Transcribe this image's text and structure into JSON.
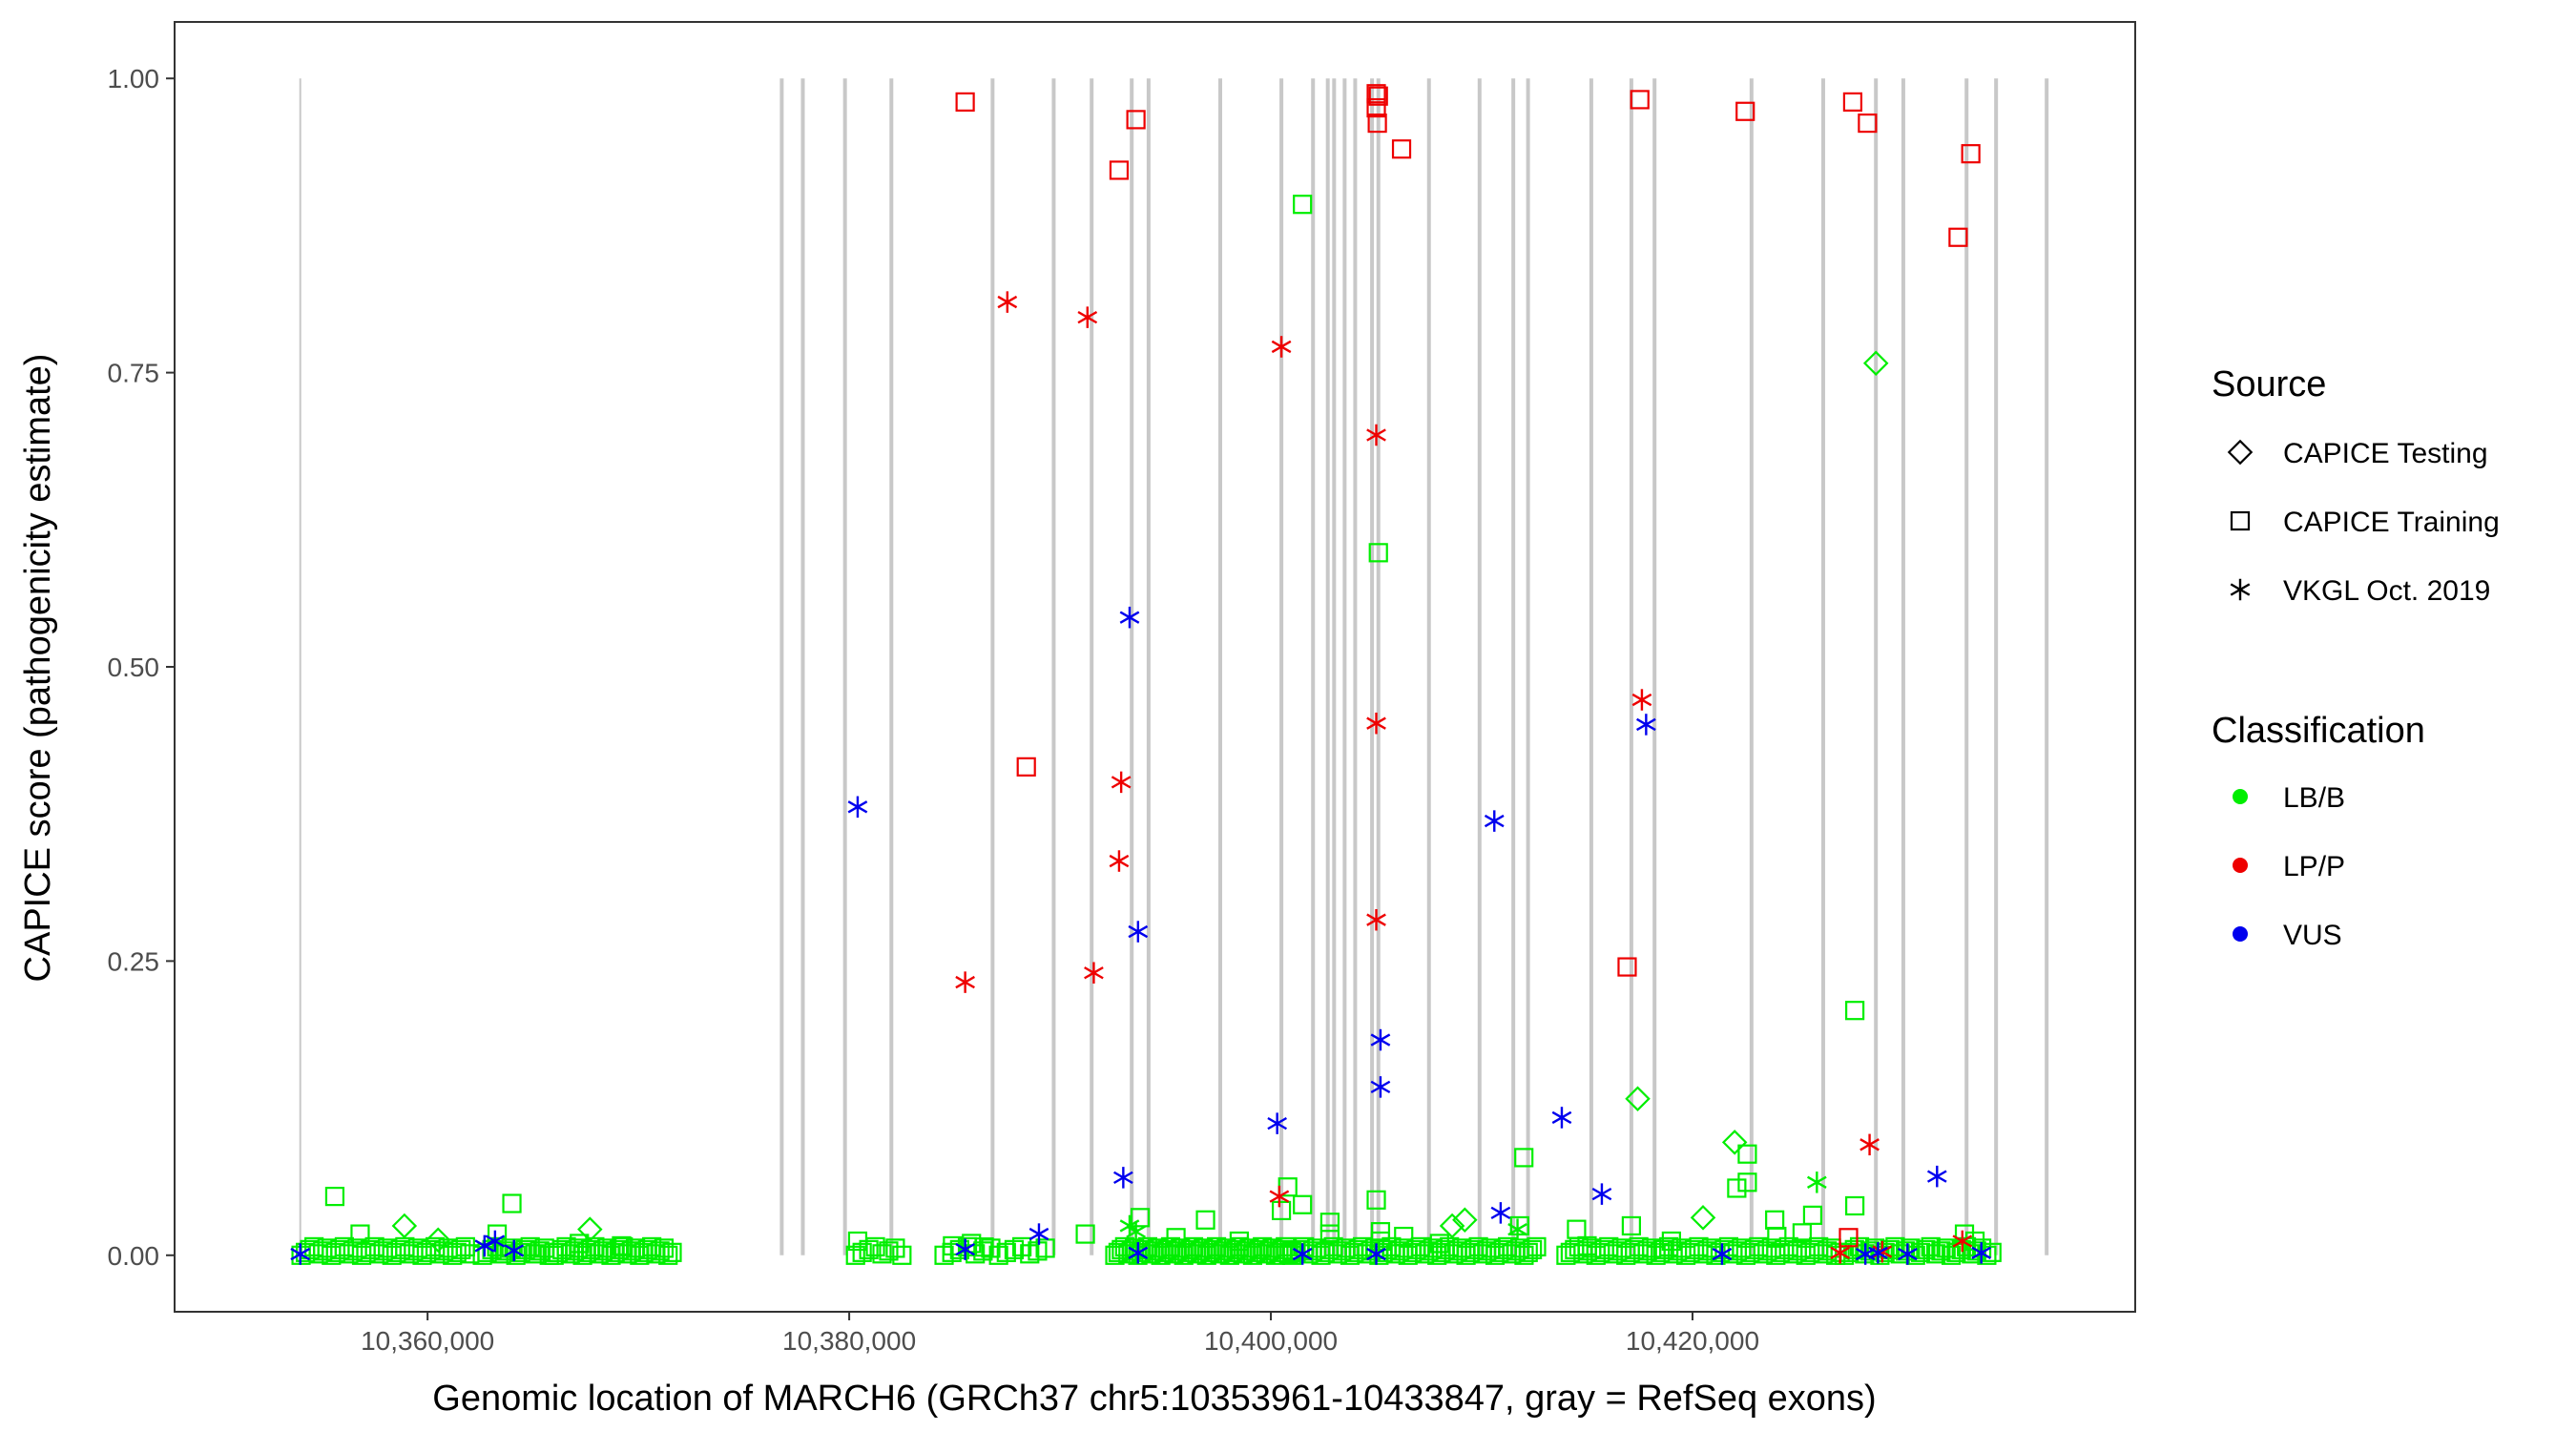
{
  "chart_data": {
    "type": "scatter",
    "title": "",
    "xlabel": "Genomic location of MARCH6 (GRCh37 chr5:10353961-10433847, gray = RefSeq exons)",
    "ylabel": "CAPICE score (pathogenicity estimate)",
    "xlim": [
      10348000,
      10441000
    ],
    "ylim": [
      -0.048,
      1.048
    ],
    "x_ticks": [
      10360000,
      10380000,
      10400000,
      10420000
    ],
    "x_tick_labels": [
      "10,360,000",
      "10,380,000",
      "10,400,000",
      "10,420,000"
    ],
    "y_ticks": [
      0,
      0.25,
      0.5,
      0.75,
      1.0
    ],
    "y_tick_labels": [
      "0.00",
      "0.25",
      "0.50",
      "0.75",
      "1.00"
    ],
    "grid": false,
    "exons": [
      10353961,
      10376800,
      10377800,
      10379800,
      10382000,
      10386800,
      10389700,
      10391500,
      10393400,
      10394200,
      10397600,
      10400500,
      10402000,
      10402700,
      10403000,
      10403500,
      10404000,
      10404800,
      10405100,
      10407500,
      10409900,
      10411500,
      10412200,
      10415200,
      10417100,
      10418200,
      10422800,
      10426200,
      10428700,
      10430000,
      10433000,
      10434400,
      10436800
    ],
    "exon_color": "#c8c8c8",
    "legend": {
      "source_title": "Source",
      "source_items": [
        {
          "label": "CAPICE Testing",
          "shape": "diamond"
        },
        {
          "label": "CAPICE Training",
          "shape": "square"
        },
        {
          "label": "VKGL Oct. 2019",
          "shape": "asterisk"
        }
      ],
      "class_title": "Classification",
      "class_items": [
        {
          "label": "LB/B",
          "color": "#00ee00"
        },
        {
          "label": "LP/P",
          "color": "#ee0000"
        },
        {
          "label": "VUS",
          "color": "#0000ee"
        }
      ],
      "position": "right"
    },
    "series": [
      {
        "name": "LP/P",
        "color": "#ee0000",
        "points": [
          {
            "x": 10385500,
            "y": 0.98,
            "shape": "square"
          },
          {
            "x": 10393600,
            "y": 0.965,
            "shape": "square"
          },
          {
            "x": 10392800,
            "y": 0.922,
            "shape": "square"
          },
          {
            "x": 10405000,
            "y": 0.987,
            "shape": "square"
          },
          {
            "x": 10405100,
            "y": 0.985,
            "shape": "square"
          },
          {
            "x": 10405000,
            "y": 0.975,
            "shape": "square"
          },
          {
            "x": 10405050,
            "y": 0.962,
            "shape": "square"
          },
          {
            "x": 10406200,
            "y": 0.94,
            "shape": "square"
          },
          {
            "x": 10417500,
            "y": 0.982,
            "shape": "square"
          },
          {
            "x": 10422500,
            "y": 0.972,
            "shape": "square"
          },
          {
            "x": 10427600,
            "y": 0.98,
            "shape": "square"
          },
          {
            "x": 10428300,
            "y": 0.962,
            "shape": "square"
          },
          {
            "x": 10433200,
            "y": 0.936,
            "shape": "square"
          },
          {
            "x": 10432600,
            "y": 0.865,
            "shape": "square"
          },
          {
            "x": 10388400,
            "y": 0.415,
            "shape": "square"
          },
          {
            "x": 10416900,
            "y": 0.245,
            "shape": "square"
          },
          {
            "x": 10427400,
            "y": 0.015,
            "shape": "square"
          },
          {
            "x": 10387500,
            "y": 0.81,
            "shape": "asterisk"
          },
          {
            "x": 10391300,
            "y": 0.797,
            "shape": "asterisk"
          },
          {
            "x": 10400500,
            "y": 0.772,
            "shape": "asterisk"
          },
          {
            "x": 10405000,
            "y": 0.697,
            "shape": "asterisk"
          },
          {
            "x": 10405000,
            "y": 0.452,
            "shape": "asterisk"
          },
          {
            "x": 10417600,
            "y": 0.472,
            "shape": "asterisk"
          },
          {
            "x": 10392900,
            "y": 0.402,
            "shape": "asterisk"
          },
          {
            "x": 10392800,
            "y": 0.335,
            "shape": "asterisk"
          },
          {
            "x": 10405000,
            "y": 0.285,
            "shape": "asterisk"
          },
          {
            "x": 10385500,
            "y": 0.232,
            "shape": "asterisk"
          },
          {
            "x": 10391600,
            "y": 0.24,
            "shape": "asterisk"
          },
          {
            "x": 10428400,
            "y": 0.094,
            "shape": "asterisk"
          },
          {
            "x": 10400400,
            "y": 0.05,
            "shape": "asterisk"
          },
          {
            "x": 10427000,
            "y": 0.002,
            "shape": "asterisk"
          },
          {
            "x": 10429000,
            "y": 0.003,
            "shape": "asterisk"
          },
          {
            "x": 10432800,
            "y": 0.012,
            "shape": "asterisk"
          }
        ]
      },
      {
        "name": "VUS",
        "color": "#0000ee",
        "points": [
          {
            "x": 10380400,
            "y": 0.381,
            "shape": "asterisk"
          },
          {
            "x": 10393300,
            "y": 0.542,
            "shape": "asterisk"
          },
          {
            "x": 10393700,
            "y": 0.275,
            "shape": "asterisk"
          },
          {
            "x": 10393000,
            "y": 0.066,
            "shape": "asterisk"
          },
          {
            "x": 10389000,
            "y": 0.018,
            "shape": "asterisk"
          },
          {
            "x": 10385500,
            "y": 0.005,
            "shape": "asterisk"
          },
          {
            "x": 10393700,
            "y": 0.002,
            "shape": "asterisk"
          },
          {
            "x": 10400300,
            "y": 0.112,
            "shape": "asterisk"
          },
          {
            "x": 10405200,
            "y": 0.183,
            "shape": "asterisk"
          },
          {
            "x": 10405200,
            "y": 0.143,
            "shape": "asterisk"
          },
          {
            "x": 10410600,
            "y": 0.369,
            "shape": "asterisk"
          },
          {
            "x": 10417800,
            "y": 0.451,
            "shape": "asterisk"
          },
          {
            "x": 10413800,
            "y": 0.117,
            "shape": "asterisk"
          },
          {
            "x": 10410900,
            "y": 0.036,
            "shape": "asterisk"
          },
          {
            "x": 10415700,
            "y": 0.052,
            "shape": "asterisk"
          },
          {
            "x": 10431600,
            "y": 0.067,
            "shape": "asterisk"
          },
          {
            "x": 10401500,
            "y": 0.001,
            "shape": "asterisk"
          },
          {
            "x": 10405000,
            "y": 0.001,
            "shape": "asterisk"
          },
          {
            "x": 10421400,
            "y": 0.001,
            "shape": "asterisk"
          },
          {
            "x": 10428200,
            "y": 0.001,
            "shape": "asterisk"
          },
          {
            "x": 10428800,
            "y": 0.002,
            "shape": "asterisk"
          },
          {
            "x": 10430200,
            "y": 0.001,
            "shape": "asterisk"
          },
          {
            "x": 10433700,
            "y": 0.002,
            "shape": "asterisk"
          },
          {
            "x": 10353961,
            "y": 0.001,
            "shape": "asterisk"
          },
          {
            "x": 10362700,
            "y": 0.008,
            "shape": "asterisk"
          },
          {
            "x": 10363200,
            "y": 0.012,
            "shape": "asterisk"
          },
          {
            "x": 10364100,
            "y": 0.004,
            "shape": "asterisk"
          }
        ]
      },
      {
        "name": "LB/B",
        "color": "#00ee00",
        "points": [
          {
            "x": 10401500,
            "y": 0.893,
            "shape": "square"
          },
          {
            "x": 10405100,
            "y": 0.597,
            "shape": "square"
          },
          {
            "x": 10427700,
            "y": 0.208,
            "shape": "square"
          },
          {
            "x": 10428700,
            "y": 0.758,
            "shape": "diamond"
          },
          {
            "x": 10417400,
            "y": 0.133,
            "shape": "diamond"
          },
          {
            "x": 10422000,
            "y": 0.096,
            "shape": "diamond"
          },
          {
            "x": 10412000,
            "y": 0.083,
            "shape": "square"
          },
          {
            "x": 10422600,
            "y": 0.086,
            "shape": "square"
          },
          {
            "x": 10422600,
            "y": 0.062,
            "shape": "square"
          },
          {
            "x": 10422100,
            "y": 0.057,
            "shape": "square"
          },
          {
            "x": 10420500,
            "y": 0.032,
            "shape": "diamond"
          },
          {
            "x": 10425900,
            "y": 0.062,
            "shape": "asterisk"
          },
          {
            "x": 10423900,
            "y": 0.03,
            "shape": "square"
          },
          {
            "x": 10425700,
            "y": 0.034,
            "shape": "square"
          },
          {
            "x": 10427700,
            "y": 0.042,
            "shape": "square"
          },
          {
            "x": 10400800,
            "y": 0.058,
            "shape": "square"
          },
          {
            "x": 10401500,
            "y": 0.043,
            "shape": "square"
          },
          {
            "x": 10400500,
            "y": 0.038,
            "shape": "square"
          },
          {
            "x": 10405000,
            "y": 0.047,
            "shape": "square"
          },
          {
            "x": 10402800,
            "y": 0.028,
            "shape": "square"
          },
          {
            "x": 10408600,
            "y": 0.025,
            "shape": "diamond"
          },
          {
            "x": 10409200,
            "y": 0.03,
            "shape": "diamond"
          },
          {
            "x": 10411800,
            "y": 0.025,
            "shape": "square"
          },
          {
            "x": 10414500,
            "y": 0.022,
            "shape": "square"
          },
          {
            "x": 10417100,
            "y": 0.025,
            "shape": "square"
          },
          {
            "x": 10396900,
            "y": 0.03,
            "shape": "square"
          },
          {
            "x": 10393800,
            "y": 0.032,
            "shape": "square"
          },
          {
            "x": 10393300,
            "y": 0.025,
            "shape": "asterisk"
          },
          {
            "x": 10393600,
            "y": 0.02,
            "shape": "asterisk"
          },
          {
            "x": 10391200,
            "y": 0.018,
            "shape": "square"
          },
          {
            "x": 10395500,
            "y": 0.015,
            "shape": "square"
          },
          {
            "x": 10398500,
            "y": 0.012,
            "shape": "square"
          },
          {
            "x": 10355600,
            "y": 0.05,
            "shape": "square"
          },
          {
            "x": 10356800,
            "y": 0.018,
            "shape": "square"
          },
          {
            "x": 10358900,
            "y": 0.025,
            "shape": "diamond"
          },
          {
            "x": 10360500,
            "y": 0.013,
            "shape": "diamond"
          },
          {
            "x": 10363300,
            "y": 0.018,
            "shape": "square"
          },
          {
            "x": 10364000,
            "y": 0.044,
            "shape": "square"
          },
          {
            "x": 10367700,
            "y": 0.022,
            "shape": "diamond"
          },
          {
            "x": 10367200,
            "y": 0.01,
            "shape": "square"
          },
          {
            "x": 10369200,
            "y": 0.008,
            "shape": "square"
          },
          {
            "x": 10380400,
            "y": 0.012,
            "shape": "square"
          },
          {
            "x": 10384900,
            "y": 0.008,
            "shape": "square"
          },
          {
            "x": 10385800,
            "y": 0.01,
            "shape": "square"
          },
          {
            "x": 10386400,
            "y": 0.007,
            "shape": "square"
          },
          {
            "x": 10418600,
            "y": 0.005,
            "shape": "square"
          },
          {
            "x": 10432900,
            "y": 0.018,
            "shape": "square"
          },
          {
            "x": 10433400,
            "y": 0.012,
            "shape": "square"
          },
          {
            "x": 10411700,
            "y": 0.022,
            "shape": "asterisk"
          },
          {
            "x": 10402800,
            "y": 0.018,
            "shape": "square"
          },
          {
            "x": 10405200,
            "y": 0.02,
            "shape": "square"
          },
          {
            "x": 10405200,
            "y": 0.012,
            "shape": "square"
          },
          {
            "x": 10406300,
            "y": 0.016,
            "shape": "square"
          },
          {
            "x": 10408000,
            "y": 0.01,
            "shape": "square"
          },
          {
            "x": 10415000,
            "y": 0.008,
            "shape": "square"
          },
          {
            "x": 10419000,
            "y": 0.012,
            "shape": "square"
          },
          {
            "x": 10424000,
            "y": 0.016,
            "shape": "square"
          },
          {
            "x": 10425200,
            "y": 0.019,
            "shape": "square"
          }
        ]
      }
    ],
    "baseline_clusters": [
      {
        "name": "LB/B",
        "color": "#00ee00",
        "shape": "square",
        "y": 0.0,
        "ranges": [
          [
            10354000,
            10362000,
            40
          ],
          [
            10362600,
            10366000,
            16
          ],
          [
            10366000,
            10371600,
            30
          ],
          [
            10380300,
            10382500,
            8
          ],
          [
            10384500,
            10389300,
            14
          ],
          [
            10392600,
            10401000,
            55
          ],
          [
            10401000,
            10412600,
            60
          ],
          [
            10414000,
            10427000,
            65
          ],
          [
            10427200,
            10434200,
            30
          ]
        ]
      }
    ]
  }
}
